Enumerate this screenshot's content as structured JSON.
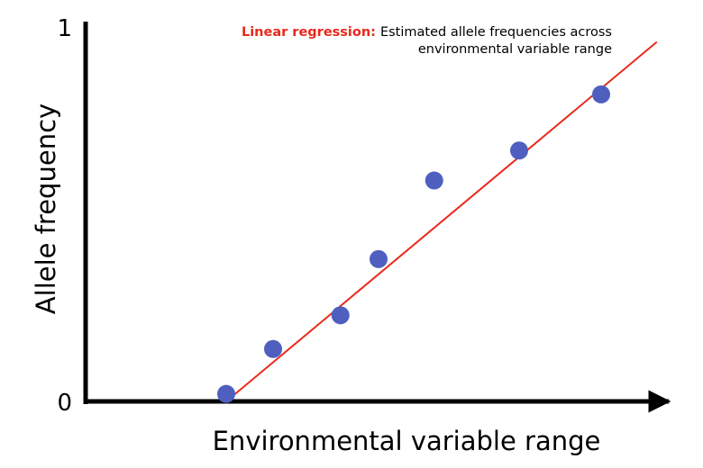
{
  "chart_data": {
    "type": "scatter",
    "title": "",
    "xlabel": "Environmental variable range",
    "ylabel": "Allele frequency",
    "xlim": [
      0,
      1
    ],
    "ylim": [
      0,
      1
    ],
    "y_ticks": [
      "0",
      "1"
    ],
    "grid": false,
    "legend": "none",
    "points": [
      {
        "x": 0.24,
        "y": 0.02
      },
      {
        "x": 0.32,
        "y": 0.14
      },
      {
        "x": 0.435,
        "y": 0.23
      },
      {
        "x": 0.5,
        "y": 0.38
      },
      {
        "x": 0.595,
        "y": 0.59
      },
      {
        "x": 0.74,
        "y": 0.67
      },
      {
        "x": 0.88,
        "y": 0.82
      }
    ],
    "regression_line": {
      "x": [
        0.24,
        0.975
      ],
      "y": [
        0.0,
        0.96
      ]
    },
    "annotation": {
      "label": "Linear regression:",
      "text_line1": "Estimated allele frequencies across",
      "text_line2": "environmental variable range"
    },
    "colors": {
      "points": "#4f5fbf",
      "regression": "#e8291c",
      "axis": "#000000",
      "annotation_label": "#e8291c"
    }
  }
}
